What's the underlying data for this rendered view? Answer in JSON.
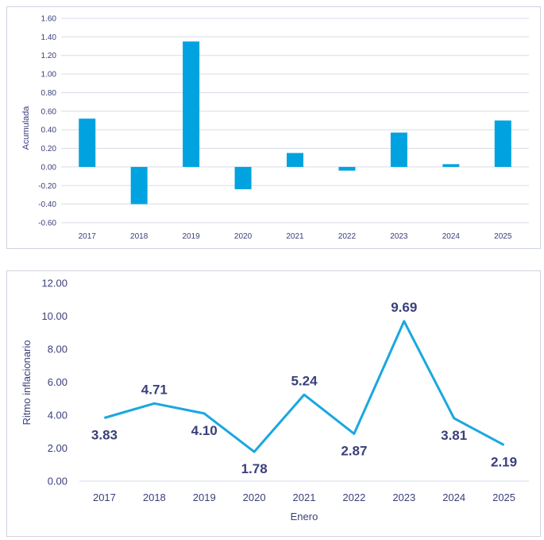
{
  "chart_data": [
    {
      "type": "bar",
      "ylabel": "Acumulada",
      "xlabel": "",
      "categories": [
        "2017",
        "2018",
        "2019",
        "2020",
        "2021",
        "2022",
        "2023",
        "2024",
        "2025"
      ],
      "values": [
        0.52,
        -0.4,
        1.35,
        -0.24,
        0.15,
        -0.04,
        0.37,
        0.03,
        0.5
      ],
      "ylim": [
        -0.6,
        1.6
      ],
      "yticks": [
        "-0.60",
        "-0.40",
        "-0.20",
        "0.00",
        "0.20",
        "0.40",
        "0.60",
        "0.80",
        "1.00",
        "1.20",
        "1.40",
        "1.60"
      ],
      "grid": true,
      "color": "#00a3e0"
    },
    {
      "type": "line",
      "ylabel": "Ritmo inflacionario",
      "xlabel": "Enero",
      "categories": [
        "2017",
        "2018",
        "2019",
        "2020",
        "2021",
        "2022",
        "2023",
        "2024",
        "2025"
      ],
      "values": [
        3.83,
        4.71,
        4.1,
        1.78,
        5.24,
        2.87,
        9.69,
        3.81,
        2.19
      ],
      "labels": [
        "3.83",
        "4.71",
        "4.10",
        "1.78",
        "5.24",
        "2.87",
        "9.69",
        "3.81",
        "2.19"
      ],
      "ylim": [
        0,
        12
      ],
      "yticks": [
        "0.00",
        "2.00",
        "4.00",
        "6.00",
        "8.00",
        "10.00",
        "12.00"
      ],
      "grid": false,
      "color": "#1aa7e0"
    }
  ]
}
